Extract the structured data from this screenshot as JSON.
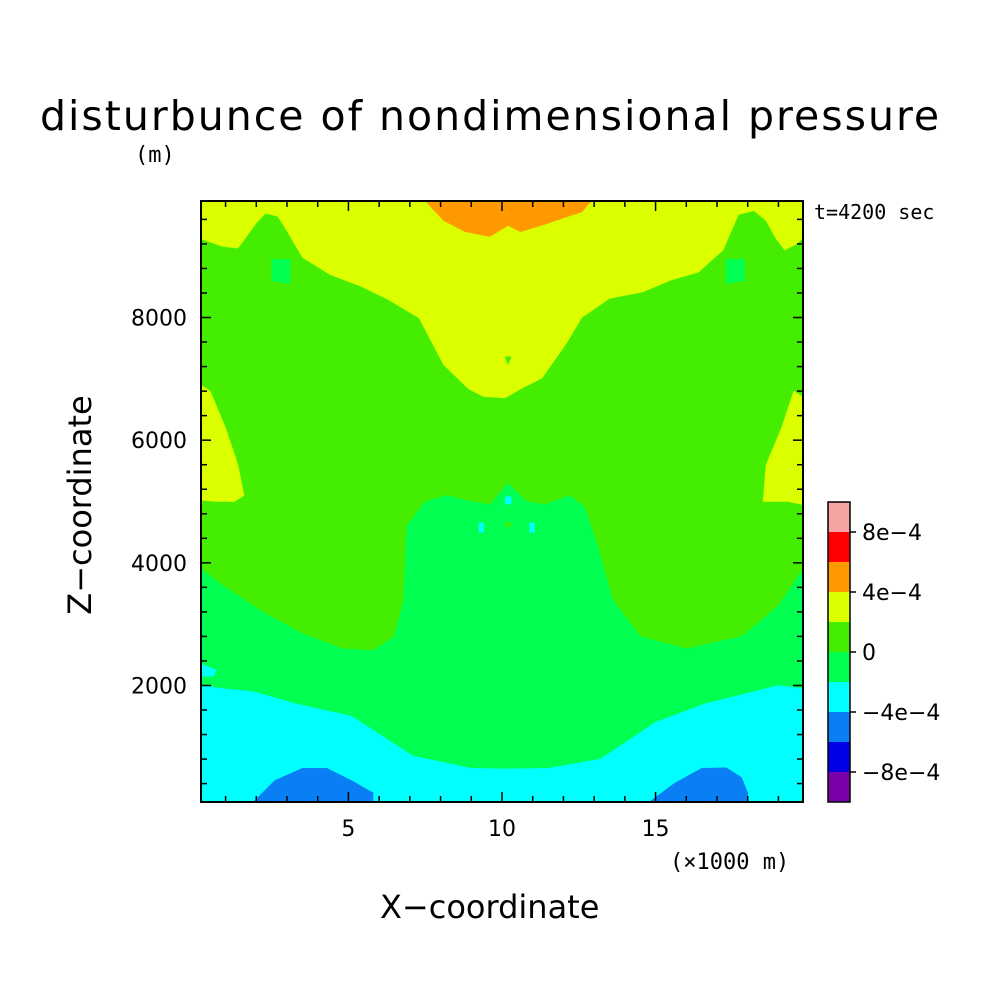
{
  "chart_data": {
    "type": "heatmap",
    "title": "disturbunce of nondimensional pressure",
    "units_label": "(m)",
    "time_label": "t=4200 sec",
    "xlabel": "X−coordinate",
    "ylabel": "Z−coordinate",
    "x_unit_label": "(×1000 m)",
    "xlim": [
      0.2,
      19.8
    ],
    "ylim": [
      100,
      9900
    ],
    "x_ticks": [
      {
        "value": 5,
        "label": "5"
      },
      {
        "value": 10,
        "label": "10"
      },
      {
        "value": 15,
        "label": "15"
      }
    ],
    "y_ticks": [
      {
        "value": 2000,
        "label": "2000"
      },
      {
        "value": 4000,
        "label": "4000"
      },
      {
        "value": 6000,
        "label": "6000"
      },
      {
        "value": 8000,
        "label": "8000"
      }
    ],
    "colorbar": {
      "levels": [
        {
          "range": [
            -0.0012,
            -0.0008
          ],
          "color": "#7a00a8"
        },
        {
          "range": [
            -0.0008,
            -0.0006
          ],
          "color": "#0000e6"
        },
        {
          "range": [
            -0.0006,
            -0.0004
          ],
          "color": "#0a7ff5"
        },
        {
          "range": [
            -0.0004,
            -0.0002
          ],
          "color": "#00ffff"
        },
        {
          "range": [
            -0.0002,
            0.0
          ],
          "color": "#00ff50"
        },
        {
          "range": [
            0.0,
            0.0002
          ],
          "color": "#45ee00"
        },
        {
          "range": [
            0.0002,
            0.0004
          ],
          "color": "#dcff00"
        },
        {
          "range": [
            0.0004,
            0.0006
          ],
          "color": "#ff9900"
        },
        {
          "range": [
            0.0006,
            0.0008
          ],
          "color": "#ff0000"
        },
        {
          "range": [
            0.0008,
            0.0012
          ],
          "color": "#f5a3a3"
        }
      ],
      "labels": [
        {
          "value": -0.0008,
          "label": "−8e−4"
        },
        {
          "value": -0.0004,
          "label": "−4e−4"
        },
        {
          "value": 0.0,
          "label": "0"
        },
        {
          "value": 0.0004,
          "label": "4e−4"
        },
        {
          "value": 0.0008,
          "label": "8e−4"
        }
      ]
    },
    "regions": [
      {
        "level": "0 to 2e-4",
        "color": "#45ee00",
        "x": [
          0.2,
          19.8,
          19.8,
          0.2
        ],
        "z": [
          100,
          100,
          9900,
          9900
        ]
      },
      {
        "level": "2e-4 to 4e-4",
        "color": "#dcff00",
        "x": [
          0.2,
          19.8,
          19.8,
          19.6,
          19.2,
          18.9,
          18.6,
          18.2,
          17.7,
          17.2,
          16.4,
          15.5,
          14.6,
          13.5,
          12.6,
          12.1,
          11.3,
          10.7,
          10.1,
          9.4,
          8.9,
          8.1,
          7.3,
          6.3,
          5.4,
          4.4,
          3.5,
          3.0,
          2.7,
          2.3,
          2.0,
          1.4,
          0.9,
          0.2
        ],
        "z": [
          9900,
          9900,
          9300,
          9200,
          9100,
          9300,
          9580,
          9740,
          9680,
          9100,
          8740,
          8610,
          8420,
          8310,
          8000,
          7580,
          7010,
          6860,
          6690,
          6710,
          6840,
          7230,
          7990,
          8290,
          8510,
          8700,
          8980,
          9410,
          9650,
          9700,
          9540,
          9130,
          9160,
          9280
        ]
      },
      {
        "level": "2e-4 to 4e-4",
        "color": "#dcff00",
        "x": [
          0.2,
          0.5,
          1.0,
          1.4,
          1.6,
          1.3,
          0.7,
          0.2
        ],
        "z": [
          6900,
          6800,
          6200,
          5600,
          5100,
          5000,
          5000,
          5020
        ]
      },
      {
        "level": "2e-4 to 4e-4",
        "color": "#dcff00",
        "x": [
          19.8,
          19.8,
          19.3,
          18.5,
          18.6,
          19.1,
          19.5
        ],
        "z": [
          6700,
          4950,
          5000,
          5000,
          5600,
          6200,
          6800
        ]
      },
      {
        "level": "4e-4 to 6e-4",
        "color": "#ff9900",
        "x": [
          7.5,
          12.9,
          12.6,
          12.1,
          11.4,
          10.6,
          10.2,
          9.6,
          8.8,
          8.1
        ],
        "z": [
          9900,
          9900,
          9720,
          9640,
          9520,
          9400,
          9500,
          9320,
          9400,
          9580
        ]
      },
      {
        "level": "-2e-4 to 0",
        "color": "#00ff50",
        "x": [
          0.2,
          1.0,
          2.2,
          3.5,
          4.8,
          5.8,
          6.5,
          6.8,
          6.9,
          7.5,
          8.2,
          9.0,
          9.6,
          10.2,
          10.8,
          11.4,
          12.2,
          12.7,
          13.1,
          13.6,
          14.5,
          16.0,
          17.8,
          19.0,
          19.8,
          19.8,
          19.0,
          17.8,
          16.6,
          15.0,
          13.2,
          11.5,
          10.2,
          9.0,
          7.1,
          5.1,
          3.3,
          1.9,
          0.9,
          0.2
        ],
        "z": [
          3900,
          3600,
          3200,
          2850,
          2600,
          2570,
          2800,
          3400,
          4600,
          5000,
          5100,
          5000,
          4950,
          5300,
          5000,
          4950,
          5100,
          4900,
          4300,
          3400,
          2800,
          2600,
          2800,
          3300,
          3900,
          1950,
          2000,
          1850,
          1700,
          1400,
          800,
          650,
          640,
          650,
          850,
          1500,
          1700,
          1900,
          1950,
          2000
        ]
      },
      {
        "level": "-2e-4 to 0",
        "color": "#00ff50",
        "x": [
          2.5,
          3.1,
          3.1,
          2.5
        ],
        "z": [
          8950,
          8950,
          8550,
          8600
        ]
      },
      {
        "level": "-2e-4 to 0",
        "color": "#00ff50",
        "x": [
          17.3,
          17.9,
          17.9,
          17.3
        ],
        "z": [
          8950,
          8950,
          8600,
          8550
        ]
      },
      {
        "level": "-4e-4 to -2e-4",
        "color": "#00ffff",
        "x": [
          0.2,
          0.9,
          1.9,
          3.3,
          5.1,
          7.1,
          9.0,
          10.2,
          11.5,
          13.2,
          15.0,
          16.6,
          17.8,
          19.0,
          19.8,
          19.8,
          0.2
        ],
        "z": [
          2000,
          1950,
          1900,
          1700,
          1500,
          850,
          650,
          640,
          650,
          800,
          1400,
          1700,
          1850,
          2000,
          1950,
          100,
          100
        ]
      },
      {
        "level": "-4e-4 to -2e-4",
        "color": "#00ffff",
        "x": [
          0.2,
          0.7,
          0.6,
          0.2
        ],
        "z": [
          2350,
          2250,
          2150,
          2150
        ]
      },
      {
        "level": "-6e-4 to -4e-4",
        "color": "#0a7ff5",
        "x": [
          1.9,
          2.6,
          3.5,
          4.3,
          5.1,
          5.8,
          5.8,
          1.9
        ],
        "z": [
          100,
          450,
          650,
          650,
          450,
          250,
          100,
          100
        ]
      },
      {
        "level": "-6e-4 to -4e-4",
        "color": "#0a7ff5",
        "x": [
          14.8,
          15.6,
          16.5,
          17.3,
          17.8,
          18.0,
          18.0,
          14.8
        ],
        "z": [
          100,
          400,
          650,
          660,
          500,
          250,
          100,
          100
        ]
      },
      {
        "level": "-4e-4 to -2e-4",
        "color": "#00ffff",
        "x": [
          10.1,
          10.3,
          10.3,
          10.1
        ],
        "z": [
          5080,
          5080,
          4960,
          4960
        ]
      },
      {
        "level": "-4e-4 to -2e-4",
        "color": "#00ffff",
        "x": [
          9.25,
          9.4,
          9.4,
          9.25
        ],
        "z": [
          4650,
          4650,
          4500,
          4500
        ]
      },
      {
        "level": "-4e-4 to -2e-4",
        "color": "#00ffff",
        "x": [
          10.9,
          11.05,
          11.05,
          10.9
        ],
        "z": [
          4650,
          4650,
          4500,
          4500
        ]
      },
      {
        "level": "0 to 2e-4",
        "color": "#45ee00",
        "x": [
          10.1,
          10.3,
          10.2
        ],
        "z": [
          4660,
          4660,
          4540
        ]
      },
      {
        "level": "0 to 2e-4",
        "color": "#45ee00",
        "x": [
          10.1,
          10.3,
          10.2
        ],
        "z": [
          7360,
          7360,
          7230
        ]
      }
    ]
  }
}
